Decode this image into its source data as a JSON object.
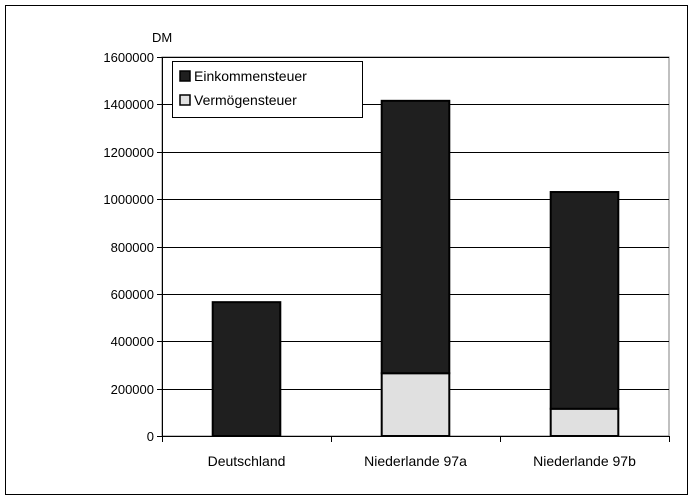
{
  "chart_data": {
    "type": "bar",
    "stacked": true,
    "categories": [
      "Deutschland",
      "Niederlande 97a",
      "Niederlande 97b"
    ],
    "series": [
      {
        "name": "Vermögensteuer",
        "values": [
          0,
          265000,
          115000
        ],
        "color": "#e0e0e0"
      },
      {
        "name": "Einkommensteuer",
        "values": [
          565000,
          1150000,
          915000
        ],
        "color": "#1f1f1f"
      }
    ],
    "legend_order": [
      1,
      0
    ],
    "unit_label": "DM",
    "ylim": [
      0,
      1600000
    ],
    "yticks": [
      0,
      200000,
      400000,
      600000,
      800000,
      1000000,
      1200000,
      1400000,
      1600000
    ],
    "grid": true,
    "legend_position": "top-left"
  }
}
